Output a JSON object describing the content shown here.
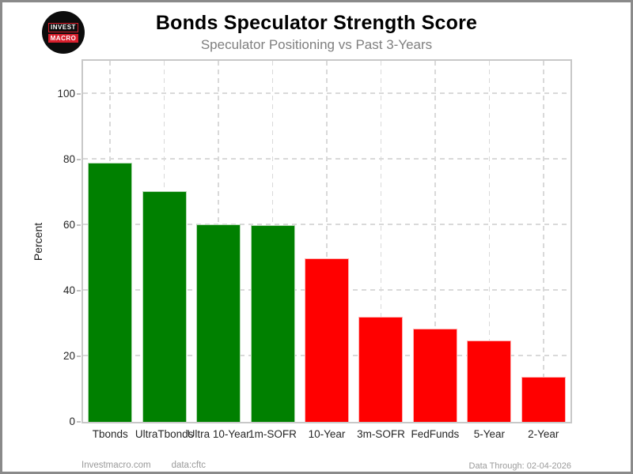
{
  "logo": {
    "line1": "INVEST",
    "line2": "MACRO"
  },
  "header": {
    "title": "Bonds Speculator Strength Score",
    "subtitle": "Speculator Positioning vs Past 3-Years"
  },
  "chart_data": {
    "type": "bar",
    "title": "Bonds Speculator Strength Score",
    "subtitle": "Speculator Positioning vs Past 3-Years",
    "categories": [
      "Tbonds",
      "UltraTbonds",
      "Ultra 10-Year",
      "1m-SOFR",
      "10-Year",
      "3m-SOFR",
      "FedFunds",
      "5-Year",
      "2-Year"
    ],
    "values": [
      79,
      70.4,
      60.2,
      60,
      49.9,
      32,
      28.5,
      24.7,
      13.8
    ],
    "bar_colors": [
      "#008000",
      "#008000",
      "#008000",
      "#008000",
      "#ff0000",
      "#ff0000",
      "#ff0000",
      "#ff0000",
      "#ff0000"
    ],
    "positive_color": "#008000",
    "negative_color": "#ff0000",
    "xlabel": "",
    "ylabel": "Percent",
    "yticks": [
      0,
      20,
      40,
      60,
      80,
      100
    ],
    "ylim": [
      0,
      110
    ],
    "grid": "dashed",
    "legend": "none"
  },
  "footer": {
    "site": "Investmacro.com",
    "source": "data:cftc",
    "data_through": "Data Through: 02-04-2026"
  }
}
